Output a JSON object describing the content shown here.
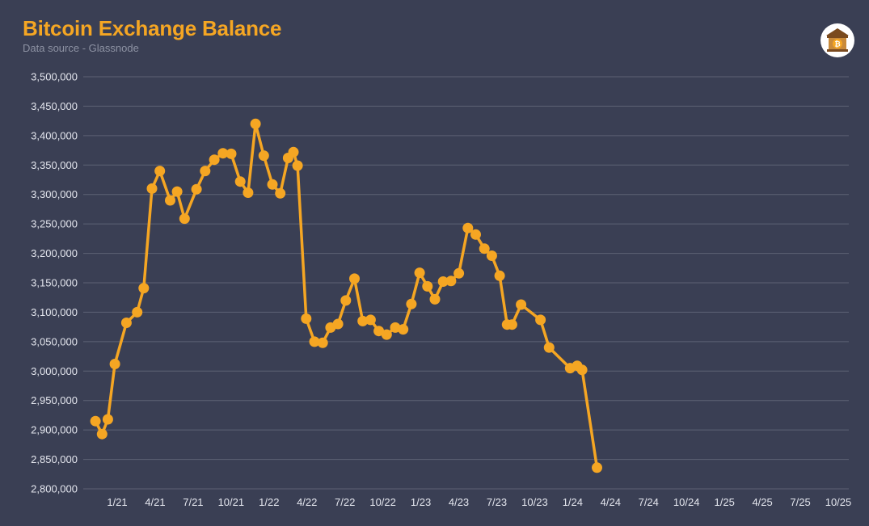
{
  "header": {
    "title": "Bitcoin Exchange Balance",
    "subtitle": "Data source - Glassnode"
  },
  "colors": {
    "background": "#3a3f54",
    "accent": "#f5a623",
    "grid": "#5d6275",
    "tick_text": "#e4e6ee"
  },
  "logo": {
    "icon": "bitcoin-bank-icon"
  },
  "chart_data": {
    "type": "line",
    "title": "Bitcoin Exchange Balance",
    "subtitle": "Data source - Glassnode",
    "xlabel": "",
    "ylabel": "",
    "ylim": [
      2800000,
      3500000
    ],
    "yticks": [
      2800000,
      2850000,
      2900000,
      2950000,
      3000000,
      3050000,
      3100000,
      3150000,
      3200000,
      3250000,
      3300000,
      3350000,
      3400000,
      3450000,
      3500000
    ],
    "yticklabels": [
      "2,800,000",
      "2,850,000",
      "2,900,000",
      "2,950,000",
      "3,000,000",
      "3,050,000",
      "3,100,000",
      "3,150,000",
      "3,200,000",
      "3,250,000",
      "3,300,000",
      "3,350,000",
      "3,400,000",
      "3,450,000",
      "3,500,000"
    ],
    "xticklabels": [
      "1/21",
      "4/21",
      "7/21",
      "10/21",
      "1/22",
      "4/22",
      "7/22",
      "10/22",
      "1/23",
      "4/23",
      "7/23",
      "10/23",
      "1/24",
      "4/24",
      "7/24",
      "10/24",
      "1/25",
      "4/25",
      "7/25",
      "10/25"
    ],
    "xlim": [
      "2020-11-01",
      "2025-10-31"
    ],
    "grid": true,
    "legend": "none",
    "series": [
      {
        "values": [
          {
            "x": "2020-11-15",
            "y": 2915000
          },
          {
            "x": "2020-12-01",
            "y": 2893000
          },
          {
            "x": "2020-12-15",
            "y": 2918000
          },
          {
            "x": "2021-01-01",
            "y": 3012000
          },
          {
            "x": "2021-01-29",
            "y": 3082000
          },
          {
            "x": "2021-02-24",
            "y": 3100000
          },
          {
            "x": "2021-03-12",
            "y": 3141000
          },
          {
            "x": "2021-04-01",
            "y": 3310000
          },
          {
            "x": "2021-04-20",
            "y": 3340000
          },
          {
            "x": "2021-05-15",
            "y": 3290000
          },
          {
            "x": "2021-06-01",
            "y": 3305000
          },
          {
            "x": "2021-06-19",
            "y": 3259000
          },
          {
            "x": "2021-07-18",
            "y": 3309000
          },
          {
            "x": "2021-08-08",
            "y": 3340000
          },
          {
            "x": "2021-08-30",
            "y": 3359000
          },
          {
            "x": "2021-09-20",
            "y": 3370000
          },
          {
            "x": "2021-10-10",
            "y": 3369000
          },
          {
            "x": "2021-11-01",
            "y": 3322000
          },
          {
            "x": "2021-11-20",
            "y": 3303000
          },
          {
            "x": "2021-12-08",
            "y": 3420000
          },
          {
            "x": "2021-12-28",
            "y": 3366000
          },
          {
            "x": "2022-01-18",
            "y": 3317000
          },
          {
            "x": "2022-02-06",
            "y": 3302000
          },
          {
            "x": "2022-02-25",
            "y": 3362000
          },
          {
            "x": "2022-03-10",
            "y": 3372000
          },
          {
            "x": "2022-03-20",
            "y": 3349000
          },
          {
            "x": "2022-04-10",
            "y": 3089000
          },
          {
            "x": "2022-04-30",
            "y": 3050000
          },
          {
            "x": "2022-05-20",
            "y": 3048000
          },
          {
            "x": "2022-06-08",
            "y": 3074000
          },
          {
            "x": "2022-06-26",
            "y": 3080000
          },
          {
            "x": "2022-07-15",
            "y": 3120000
          },
          {
            "x": "2022-08-05",
            "y": 3157000
          },
          {
            "x": "2022-08-25",
            "y": 3085000
          },
          {
            "x": "2022-09-13",
            "y": 3087000
          },
          {
            "x": "2022-10-03",
            "y": 3068000
          },
          {
            "x": "2022-10-22",
            "y": 3062000
          },
          {
            "x": "2022-11-12",
            "y": 3074000
          },
          {
            "x": "2022-12-01",
            "y": 3071000
          },
          {
            "x": "2022-12-21",
            "y": 3114000
          },
          {
            "x": "2023-01-10",
            "y": 3167000
          },
          {
            "x": "2023-01-29",
            "y": 3144000
          },
          {
            "x": "2023-02-16",
            "y": 3122000
          },
          {
            "x": "2023-03-08",
            "y": 3152000
          },
          {
            "x": "2023-03-27",
            "y": 3153000
          },
          {
            "x": "2023-04-15",
            "y": 3166000
          },
          {
            "x": "2023-05-07",
            "y": 3243000
          },
          {
            "x": "2023-05-26",
            "y": 3232000
          },
          {
            "x": "2023-06-16",
            "y": 3208000
          },
          {
            "x": "2023-07-04",
            "y": 3196000
          },
          {
            "x": "2023-07-23",
            "y": 3162000
          },
          {
            "x": "2023-08-10",
            "y": 3079000
          },
          {
            "x": "2023-08-22",
            "y": 3079000
          },
          {
            "x": "2023-09-13",
            "y": 3113000
          },
          {
            "x": "2023-10-30",
            "y": 3087000
          },
          {
            "x": "2023-11-20",
            "y": 3040000
          },
          {
            "x": "2024-01-10",
            "y": 3005000
          },
          {
            "x": "2024-01-27",
            "y": 3009000
          },
          {
            "x": "2024-02-08",
            "y": 3002000
          },
          {
            "x": "2024-03-15",
            "y": 2836000
          }
        ]
      }
    ]
  }
}
